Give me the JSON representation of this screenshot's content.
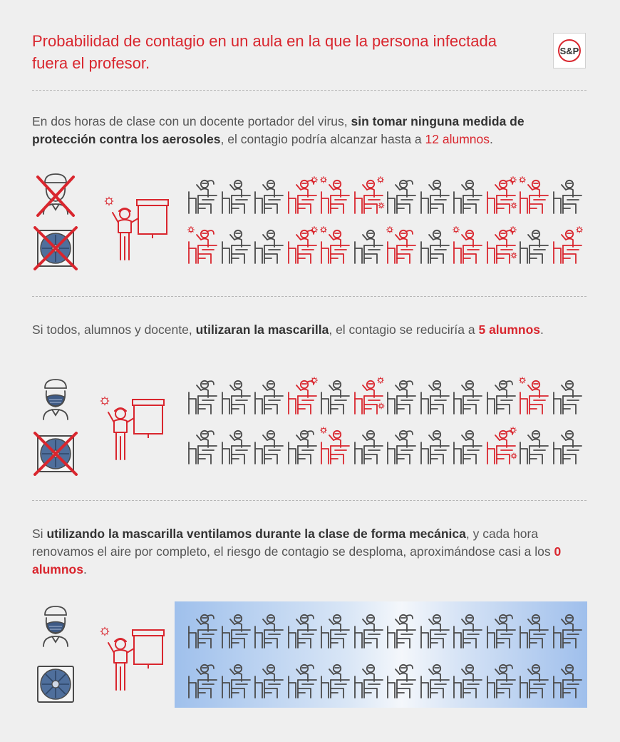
{
  "title": "Probabilidad de contagio en un aula en la que la persona infectada fuera el profesor.",
  "logo": {
    "text": "S&P",
    "color": "#d9262e"
  },
  "colors": {
    "red": "#d9262e",
    "gray": "#4a4a4a",
    "background": "#efefef"
  },
  "sections": [
    {
      "segments": [
        {
          "text": "En dos horas de clase con un docente portador del virus, "
        },
        {
          "text": "sin tomar ninguna medida de protección contra los aerosoles",
          "bold": true
        },
        {
          "text": ", el contagio podría alcanzar hasta a "
        },
        {
          "text": "12 alumnos",
          "red": true
        },
        {
          "text": "."
        }
      ],
      "mask": false,
      "ventilation": false,
      "infected_students": 12,
      "students_total": 24
    },
    {
      "segments": [
        {
          "text": "Si todos, alumnos y docente, "
        },
        {
          "text": "utilizaran la mascarilla",
          "bold": true
        },
        {
          "text": ", el contagio se reduciría a "
        },
        {
          "text": "5 alumnos",
          "red": true,
          "bold": true
        },
        {
          "text": "."
        }
      ],
      "mask": true,
      "ventilation": false,
      "infected_students": 5,
      "students_total": 24
    },
    {
      "segments": [
        {
          "text": "Si "
        },
        {
          "text": "utilizando la mascarilla ventilamos durante la clase de forma mecánica",
          "bold": true
        },
        {
          "text": ", y cada hora renovamos el aire por completo, el riesgo de contagio se desploma, aproximándose casi a los "
        },
        {
          "text": "0 alumnos",
          "red": true,
          "bold": true
        },
        {
          "text": "."
        }
      ],
      "mask": true,
      "ventilation": true,
      "infected_students": 0,
      "students_total": 24
    }
  ],
  "icons": {
    "no_mask": "person-no-mask-icon",
    "mask": "person-mask-icon",
    "fan": "ventilation-fan-icon",
    "cross": "red-cross-icon",
    "teacher": "teacher-board-icon",
    "student": "student-desk-icon",
    "virus": "virus-icon"
  }
}
